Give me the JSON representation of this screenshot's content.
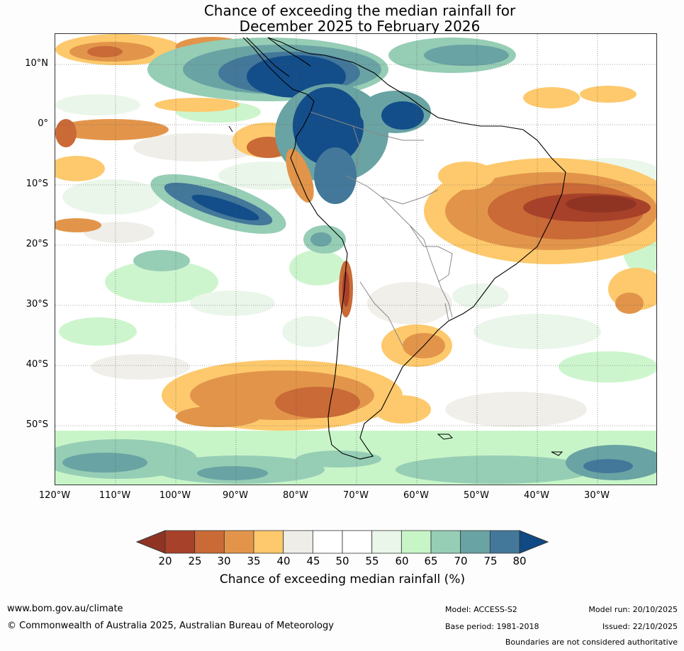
{
  "title": {
    "line1": "Chance of exceeding the median rainfall for",
    "line2": "December 2025 to February 2026"
  },
  "map": {
    "lat_labels": [
      "10°N",
      "0°",
      "10°S",
      "20°S",
      "30°S",
      "40°S",
      "50°S"
    ],
    "lon_labels": [
      "120°W",
      "110°W",
      "100°W",
      "90°W",
      "80°W",
      "70°W",
      "60°W",
      "50°W",
      "40°W",
      "30°W"
    ]
  },
  "colorbar": {
    "title": "Chance of exceeding median rainfall (%)",
    "ticks": [
      "20",
      "25",
      "30",
      "35",
      "40",
      "45",
      "50",
      "55",
      "60",
      "65",
      "70",
      "75",
      "80"
    ],
    "colors": [
      "#a8412a",
      "#c96a37",
      "#e2954a",
      "#fdc96c",
      "#efede7",
      "#ffffff",
      "#ffffff",
      "#e9f6e9",
      "#c8f5c8",
      "#96cdb5",
      "#6aa3a4",
      "#43789a",
      "#134e8a"
    ],
    "under_color": "#8f3423",
    "over_color": "#0f4a84"
  },
  "footer": {
    "website": "www.bom.gov.au/climate",
    "copyright": "© Commonwealth of Australia 2025, Australian Bureau of Meteorology",
    "model": "Model: ACCESS-S2",
    "base_period": "Base period: 1981-2018",
    "model_run": "Model run: 20/10/2025",
    "issued": "Issued: 22/10/2025",
    "disclaimer": "Boundaries are not considered authoritative"
  }
}
